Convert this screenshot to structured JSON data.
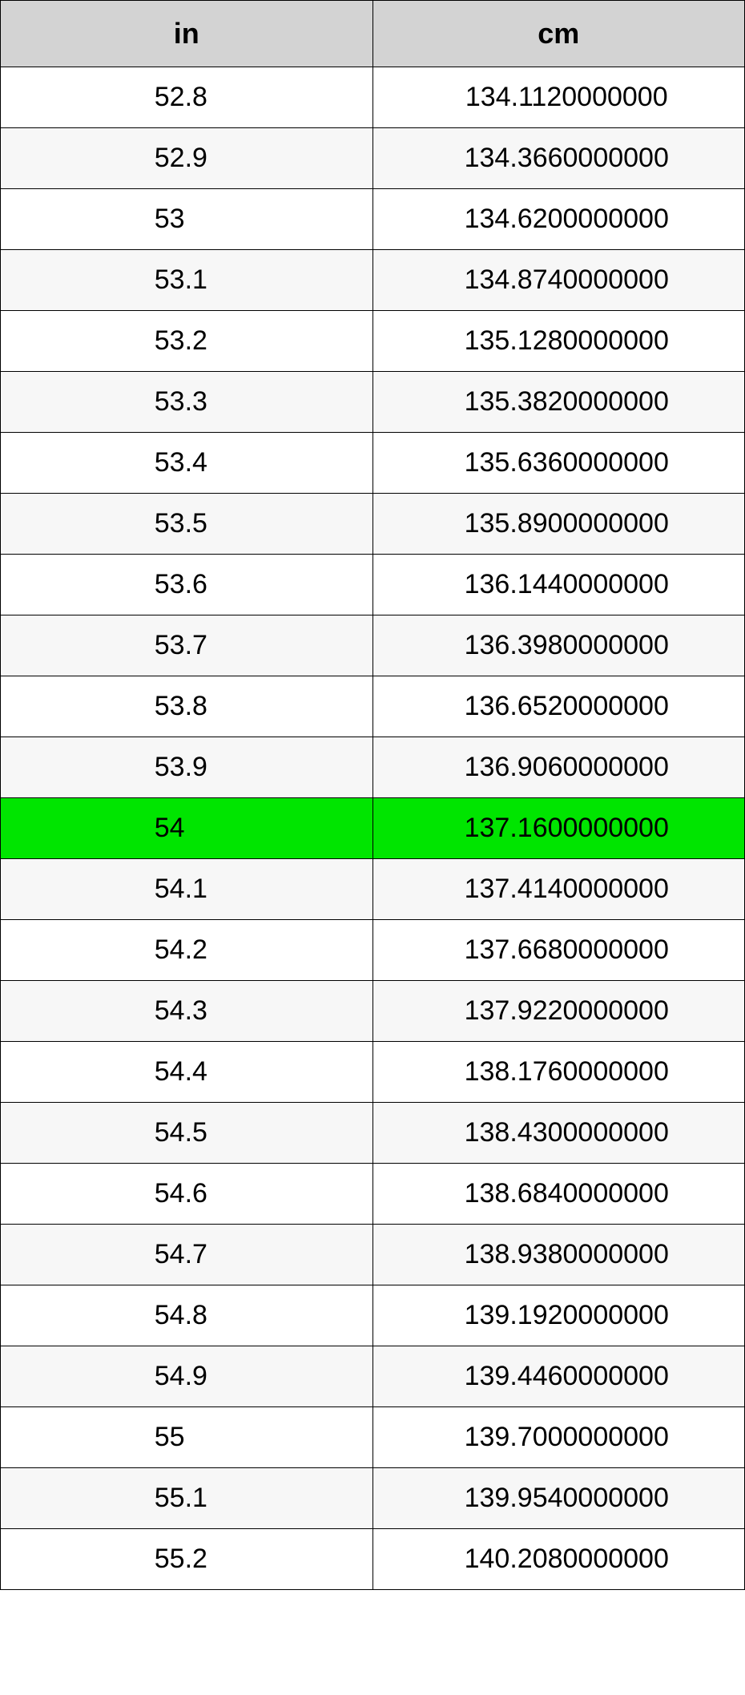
{
  "table": {
    "type": "table",
    "columns": [
      "in",
      "cm"
    ],
    "header_bg": "#d3d3d3",
    "header_fontsize": 36,
    "cell_fontsize": 34,
    "border_color": "#000000",
    "row_odd_bg": "#ffffff",
    "row_even_bg": "#f7f7f7",
    "highlight_bg": "#00e500",
    "highlight_index": 12,
    "column_widths": [
      "50%",
      "50%"
    ],
    "column_alignment": [
      "center",
      "center"
    ],
    "rows": [
      {
        "in": "52.8",
        "cm": "134.1120000000"
      },
      {
        "in": "52.9",
        "cm": "134.3660000000"
      },
      {
        "in": "53",
        "cm": "134.6200000000"
      },
      {
        "in": "53.1",
        "cm": "134.8740000000"
      },
      {
        "in": "53.2",
        "cm": "135.1280000000"
      },
      {
        "in": "53.3",
        "cm": "135.3820000000"
      },
      {
        "in": "53.4",
        "cm": "135.6360000000"
      },
      {
        "in": "53.5",
        "cm": "135.8900000000"
      },
      {
        "in": "53.6",
        "cm": "136.1440000000"
      },
      {
        "in": "53.7",
        "cm": "136.3980000000"
      },
      {
        "in": "53.8",
        "cm": "136.6520000000"
      },
      {
        "in": "53.9",
        "cm": "136.9060000000"
      },
      {
        "in": "54",
        "cm": "137.1600000000"
      },
      {
        "in": "54.1",
        "cm": "137.4140000000"
      },
      {
        "in": "54.2",
        "cm": "137.6680000000"
      },
      {
        "in": "54.3",
        "cm": "137.9220000000"
      },
      {
        "in": "54.4",
        "cm": "138.1760000000"
      },
      {
        "in": "54.5",
        "cm": "138.4300000000"
      },
      {
        "in": "54.6",
        "cm": "138.6840000000"
      },
      {
        "in": "54.7",
        "cm": "138.9380000000"
      },
      {
        "in": "54.8",
        "cm": "139.1920000000"
      },
      {
        "in": "54.9",
        "cm": "139.4460000000"
      },
      {
        "in": "55",
        "cm": "139.7000000000"
      },
      {
        "in": "55.1",
        "cm": "139.9540000000"
      },
      {
        "in": "55.2",
        "cm": "140.2080000000"
      }
    ]
  }
}
